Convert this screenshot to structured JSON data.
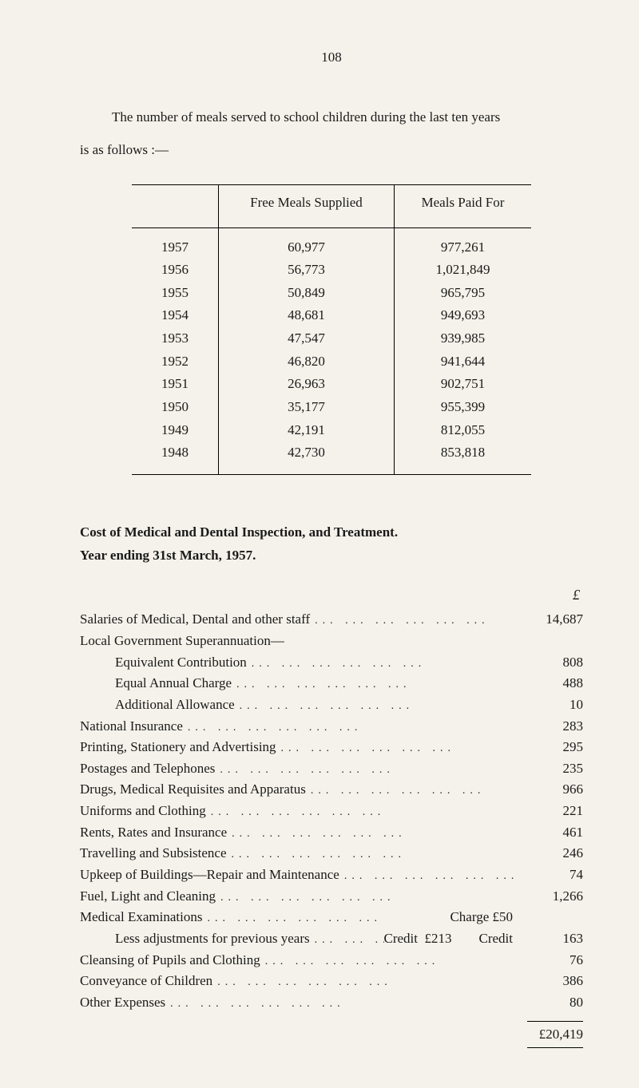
{
  "pageNumber": "108",
  "introLine1": "The number of meals served to school children during the last ten years",
  "introLine2": "is as follows :—",
  "mealsTable": {
    "headers": {
      "year": "",
      "free": "Free Meals Supplied",
      "paid": "Meals Paid For"
    },
    "rows": [
      {
        "year": "1957",
        "free": "60,977",
        "paid": "977,261"
      },
      {
        "year": "1956",
        "free": "56,773",
        "paid": "1,021,849"
      },
      {
        "year": "1955",
        "free": "50,849",
        "paid": "965,795"
      },
      {
        "year": "1954",
        "free": "48,681",
        "paid": "949,693"
      },
      {
        "year": "1953",
        "free": "47,547",
        "paid": "939,985"
      },
      {
        "year": "1952",
        "free": "46,820",
        "paid": "941,644"
      },
      {
        "year": "1951",
        "free": "26,963",
        "paid": "902,751"
      },
      {
        "year": "1950",
        "free": "35,177",
        "paid": "955,399"
      },
      {
        "year": "1949",
        "free": "42,191",
        "paid": "812,055"
      },
      {
        "year": "1948",
        "free": "42,730",
        "paid": "853,818"
      }
    ]
  },
  "sectionTitle1": "Cost of Medical and Dental Inspection, and Treatment.",
  "sectionTitle2": "Year ending 31st March, 1957.",
  "poundSymbol": "£",
  "costs": [
    {
      "label": "Salaries of Medical, Dental and other staff",
      "amount": "14,687",
      "indent": false
    },
    {
      "label": "Local Government Superannuation—",
      "amount": "",
      "heading": true
    },
    {
      "label": "Equivalent Contribution",
      "amount": "808",
      "indent": true
    },
    {
      "label": "Equal Annual Charge",
      "amount": "488",
      "indent": true
    },
    {
      "label": "Additional Allowance",
      "amount": "10",
      "indent": true
    },
    {
      "label": "National Insurance",
      "amount": "283"
    },
    {
      "label": "Printing, Stationery and Advertising",
      "amount": "295"
    },
    {
      "label": "Postages and Telephones",
      "amount": "235"
    },
    {
      "label": "Drugs, Medical Requisites and Apparatus",
      "amount": "966"
    },
    {
      "label": "Uniforms and Clothing",
      "amount": "221"
    },
    {
      "label": "Rents, Rates and Insurance",
      "amount": "461"
    },
    {
      "label": "Travelling and Subsistence",
      "amount": "246"
    },
    {
      "label": "Upkeep of Buildings—Repair and Maintenance",
      "amount": "74"
    },
    {
      "label": "Fuel, Light and Cleaning",
      "amount": "1,266"
    },
    {
      "label": "Medical Examinations",
      "note": "Charge £50",
      "amount": ""
    },
    {
      "label": "Less adjustments for previous years",
      "note": "Credit  £213        Credit",
      "amount": "163",
      "indent": true
    },
    {
      "label": "Cleansing of Pupils and Clothing",
      "amount": "76"
    },
    {
      "label": "Conveyance of Children",
      "amount": "386"
    },
    {
      "label": "Other Expenses",
      "amount": "80"
    }
  ],
  "total": "£20,419"
}
